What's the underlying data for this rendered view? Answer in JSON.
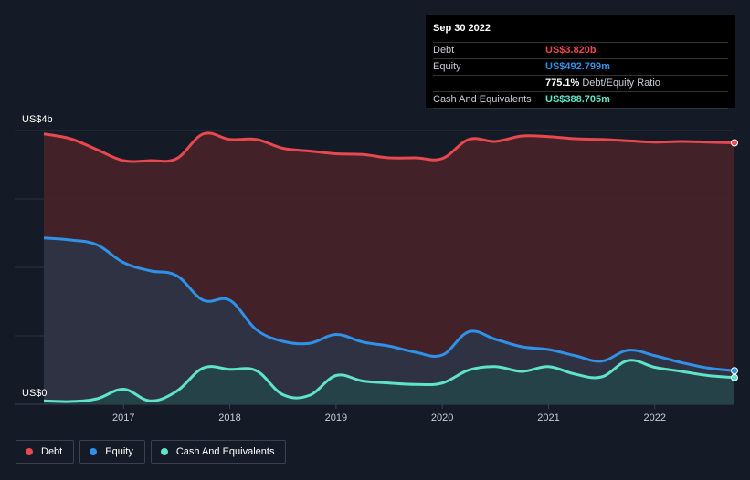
{
  "tooltip": {
    "date": "Sep 30 2022",
    "rows": [
      {
        "label": "Debt",
        "value": "US$3.820b",
        "color": "#e8484e",
        "suffix": ""
      },
      {
        "label": "Equity",
        "value": "US$492.799m",
        "color": "#2f92e8",
        "suffix": ""
      },
      {
        "label": "",
        "value": "775.1%",
        "color": "#ffffff",
        "suffix": "Debt/Equity Ratio"
      },
      {
        "label": "Cash And Equivalents",
        "value": "US$388.705m",
        "color": "#5fe3c9",
        "suffix": ""
      }
    ]
  },
  "axis": {
    "y_top_label": "US$4b",
    "y_bottom_label": "US$0"
  },
  "legend": {
    "debt": "Debt",
    "equity": "Equity",
    "cash": "Cash And Equivalents"
  },
  "colors": {
    "debt": "#e8484e",
    "equity": "#2f92e8",
    "cash": "#5fe3c9",
    "background": "#151b26"
  },
  "chart_data": {
    "type": "area",
    "title": "",
    "xlabel": "",
    "ylabel": "",
    "ylim": [
      0,
      4.0
    ],
    "y_unit": "US$ billions",
    "x_ticks": [
      "2017",
      "2018",
      "2019",
      "2020",
      "2021",
      "2022"
    ],
    "x_tick_positions": [
      2017.0,
      2018.0,
      2019.0,
      2020.0,
      2021.0,
      2022.0
    ],
    "xlim": [
      2016.25,
      2022.75
    ],
    "grid": true,
    "legend_position": "bottom-left",
    "series": [
      {
        "name": "Debt",
        "x": [
          2016.25,
          2016.5,
          2016.75,
          2017.0,
          2017.25,
          2017.5,
          2017.75,
          2018.0,
          2018.25,
          2018.5,
          2018.75,
          2019.0,
          2019.25,
          2019.5,
          2019.75,
          2020.0,
          2020.25,
          2020.5,
          2020.75,
          2021.0,
          2021.25,
          2021.5,
          2021.75,
          2022.0,
          2022.25,
          2022.5,
          2022.75
        ],
        "values": [
          3.95,
          3.88,
          3.72,
          3.56,
          3.56,
          3.59,
          3.95,
          3.87,
          3.87,
          3.74,
          3.7,
          3.66,
          3.65,
          3.6,
          3.6,
          3.59,
          3.87,
          3.84,
          3.92,
          3.91,
          3.88,
          3.87,
          3.85,
          3.83,
          3.84,
          3.83,
          3.82
        ]
      },
      {
        "name": "Equity",
        "x": [
          2016.25,
          2016.5,
          2016.75,
          2017.0,
          2017.25,
          2017.5,
          2017.75,
          2018.0,
          2018.25,
          2018.5,
          2018.75,
          2019.0,
          2019.25,
          2019.5,
          2019.75,
          2020.0,
          2020.25,
          2020.5,
          2020.75,
          2021.0,
          2021.25,
          2021.5,
          2021.75,
          2022.0,
          2022.25,
          2022.5,
          2022.75
        ],
        "values": [
          2.43,
          2.4,
          2.33,
          2.07,
          1.95,
          1.88,
          1.52,
          1.52,
          1.09,
          0.92,
          0.89,
          1.02,
          0.91,
          0.85,
          0.76,
          0.72,
          1.06,
          0.95,
          0.84,
          0.8,
          0.71,
          0.63,
          0.79,
          0.71,
          0.61,
          0.53,
          0.49
        ]
      },
      {
        "name": "Cash And Equivalents",
        "x": [
          2016.25,
          2016.5,
          2016.75,
          2017.0,
          2017.25,
          2017.5,
          2017.75,
          2018.0,
          2018.25,
          2018.5,
          2018.75,
          2019.0,
          2019.25,
          2019.5,
          2019.75,
          2020.0,
          2020.25,
          2020.5,
          2020.75,
          2021.0,
          2021.25,
          2021.5,
          2021.75,
          2022.0,
          2022.25,
          2022.5,
          2022.75
        ],
        "values": [
          0.05,
          0.04,
          0.08,
          0.22,
          0.05,
          0.19,
          0.53,
          0.51,
          0.49,
          0.14,
          0.13,
          0.42,
          0.34,
          0.31,
          0.29,
          0.31,
          0.5,
          0.55,
          0.48,
          0.55,
          0.44,
          0.4,
          0.64,
          0.54,
          0.48,
          0.42,
          0.39
        ]
      }
    ]
  }
}
